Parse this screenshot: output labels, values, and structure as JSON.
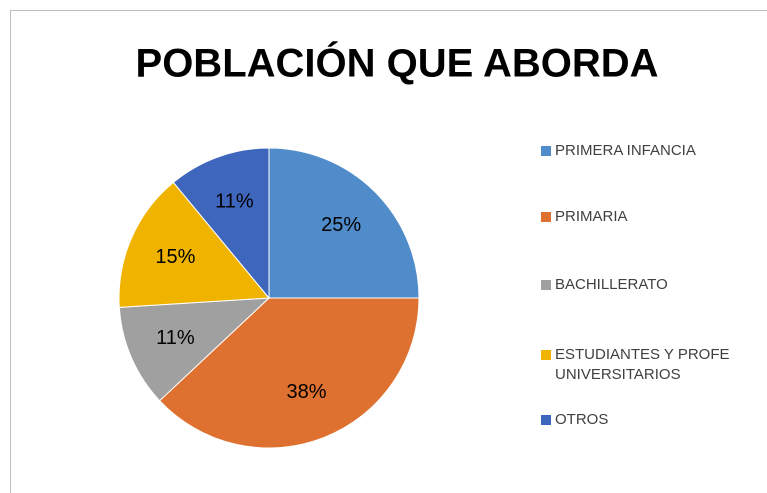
{
  "chart_data": {
    "type": "pie",
    "title": "POBLACIÓN QUE ABORDA",
    "categories": [
      "PRIMERA INFANCIA",
      "PRIMARIA",
      "BACHILLERATO",
      "ESTUDIANTES Y PROFE UNIVERSITARIOS",
      "OTROS"
    ],
    "values": [
      25,
      38,
      11,
      15,
      11
    ],
    "value_labels": [
      "25%",
      "38%",
      "11%",
      "15%",
      "11%"
    ],
    "colors": [
      "#4f8cc9",
      "#de7130",
      "#a0a0a0",
      "#f0b400",
      "#3f66bd"
    ],
    "legend": "right"
  }
}
